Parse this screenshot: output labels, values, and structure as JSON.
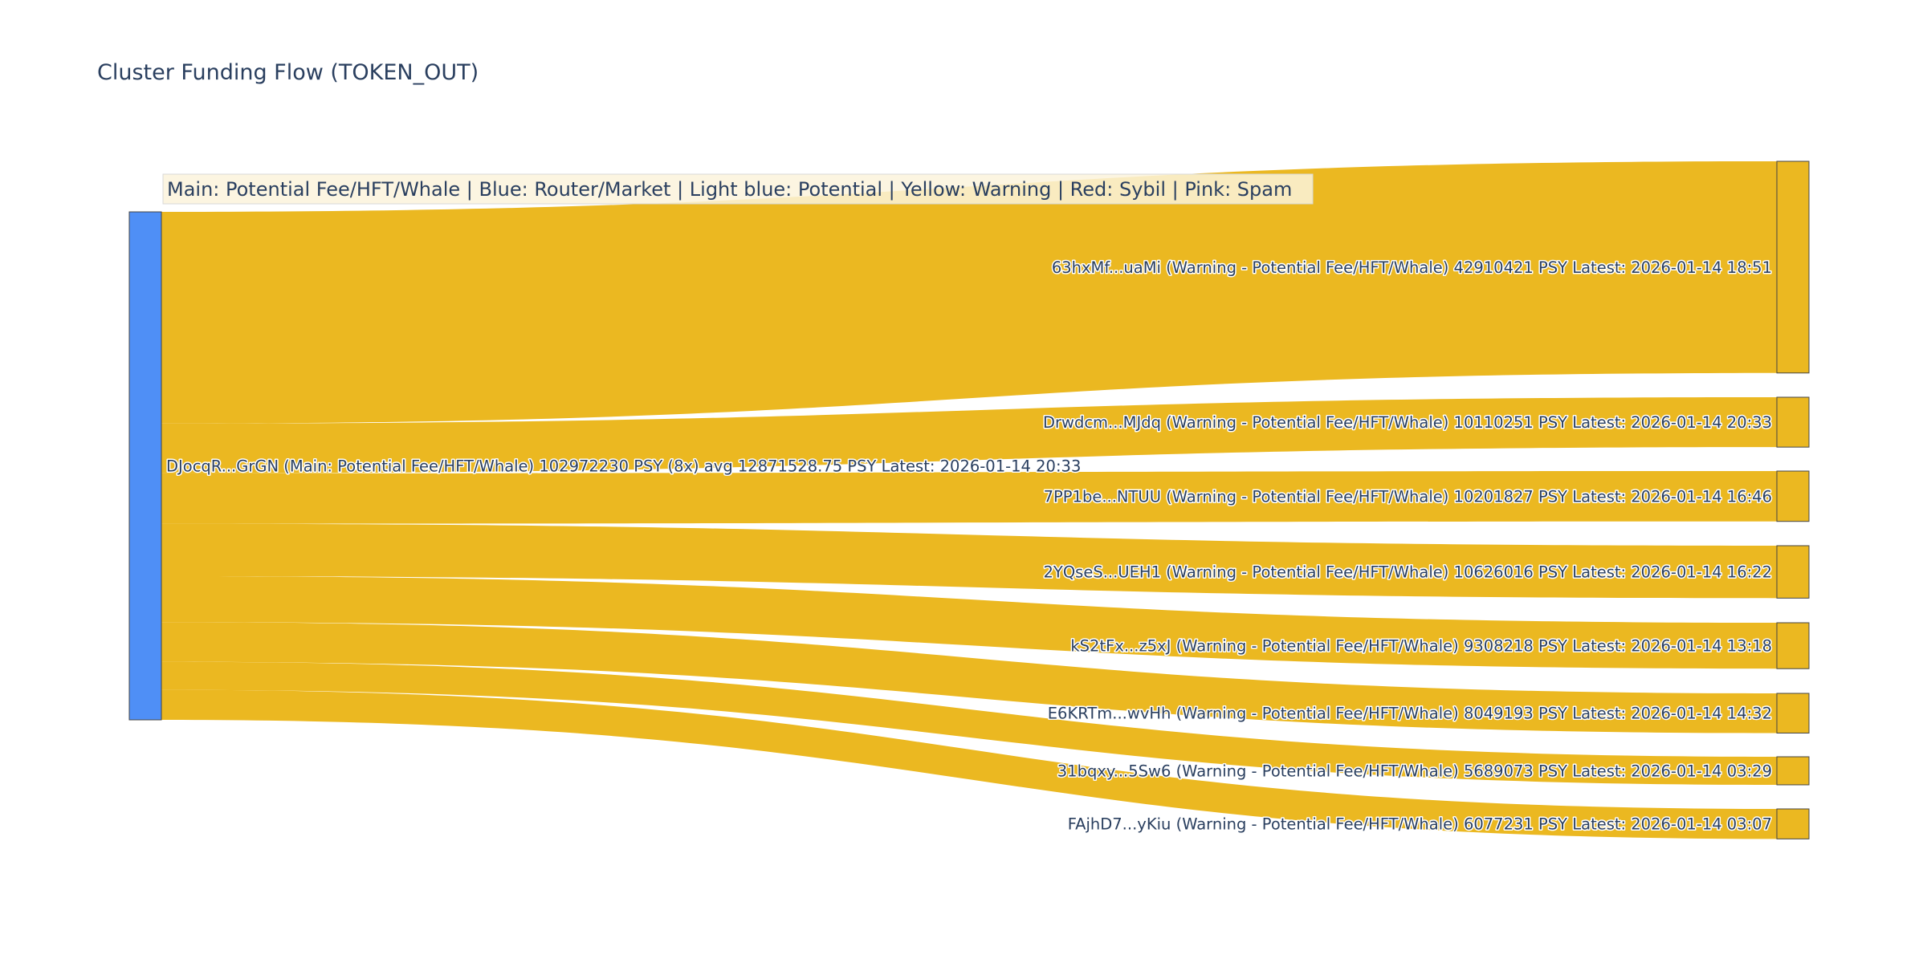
{
  "title": "Cluster Funding Flow (TOKEN_OUT)",
  "legend": "Main: Potential Fee/HFT/Whale  |  Blue: Router/Market | Light blue: Potential | Yellow: Warning | Red: Sybil | Pink: Spam",
  "colors": {
    "source_node": "#4f8ff6",
    "target_node": "#ebb821",
    "link": "#ebb821",
    "node_border": "#444444"
  },
  "chart_data": {
    "type": "sankey",
    "source": {
      "label": "DJocqR...GrGN (Main: Potential Fee/HFT/Whale) 102972230 PSY (8x) avg 12871528.75 PSY Latest: 2026-01-14 20:33"
    },
    "targets": [
      {
        "label": "63hxMf...uaMi (Warning - Potential Fee/HFT/Whale) 42910421 PSY Latest: 2026-01-14 18:51",
        "value": 42910421
      },
      {
        "label": "Drwdcm...MJdq (Warning - Potential Fee/HFT/Whale) 10110251 PSY Latest: 2026-01-14 20:33",
        "value": 10110251
      },
      {
        "label": "7PP1be...NTUU (Warning - Potential Fee/HFT/Whale) 10201827 PSY Latest: 2026-01-14 16:46",
        "value": 10201827
      },
      {
        "label": "2YQseS...UEH1 (Warning - Potential Fee/HFT/Whale) 10626016 PSY Latest: 2026-01-14 16:22",
        "value": 10626016
      },
      {
        "label": "kS2tFx...z5xJ (Warning - Potential Fee/HFT/Whale) 9308218 PSY Latest: 2026-01-14 13:18",
        "value": 9308218
      },
      {
        "label": "E6KRTm...wvHh (Warning - Potential Fee/HFT/Whale) 8049193 PSY Latest: 2026-01-14 14:32",
        "value": 8049193
      },
      {
        "label": "31bqxy...5Sw6 (Warning - Potential Fee/HFT/Whale) 5689073 PSY Latest: 2026-01-14 03:29",
        "value": 5689073
      },
      {
        "label": "FAjhD7...yKiu (Warning - Potential Fee/HFT/Whale) 6077231 PSY Latest: 2026-01-14 03:07",
        "value": 6077231
      }
    ]
  }
}
